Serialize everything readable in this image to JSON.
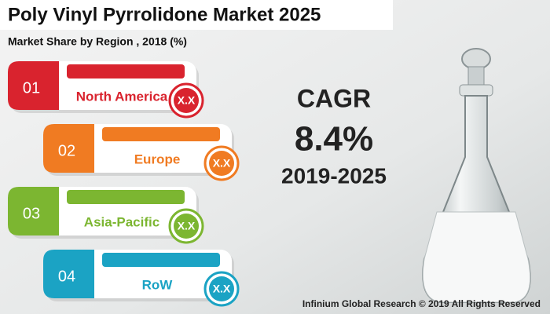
{
  "header": {
    "title": "Poly Vinyl Pyrrolidone Market 2025",
    "subtitle": "Market Share by Region , 2018 (%)"
  },
  "regions": [
    {
      "number": "01",
      "name": "North America",
      "value": "X.X",
      "color": "#d9232e"
    },
    {
      "number": "02",
      "name": "Europe",
      "value": "X.X",
      "color": "#f07b22"
    },
    {
      "number": "03",
      "name": "Asia-Pacific",
      "value": "X.X",
      "color": "#7cb631"
    },
    {
      "number": "04",
      "name": "RoW",
      "value": "X.X",
      "color": "#1ba3c4"
    }
  ],
  "cagr": {
    "label": "CAGR",
    "value": "8.4%",
    "period": "2019-2025"
  },
  "footer": "Infinium Global Research © 2019 All Rights Reserved"
}
